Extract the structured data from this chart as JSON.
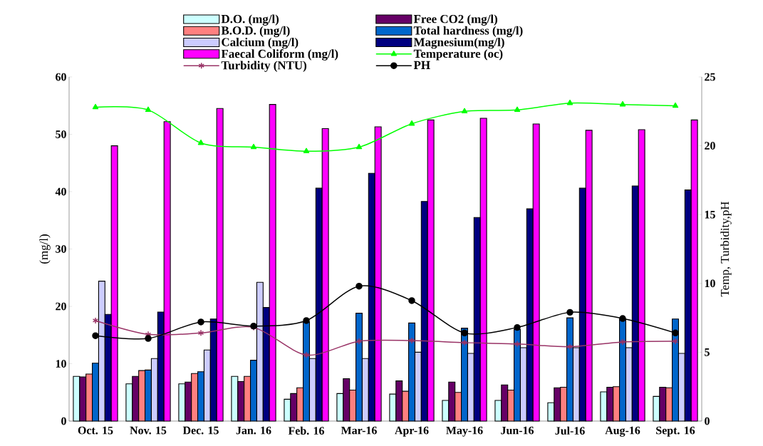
{
  "chart_data": {
    "type": "bar",
    "categories": [
      "Oct. 15",
      "Nov. 15",
      "Dec. 15",
      "Jan. 16",
      "Feb. 16",
      "Mar-16",
      "Apr-16",
      "May-16",
      "Jun-16",
      "Jul-16",
      "Aug-16",
      "Sept. 16"
    ],
    "ylabel": "(mg/l)",
    "y2label": "Temp,  Turbidity,pH",
    "ylim": [
      0,
      60
    ],
    "yticks": [
      0,
      10,
      20,
      30,
      40,
      50,
      60
    ],
    "y2lim": [
      0,
      25
    ],
    "y2ticks": [
      0,
      5,
      10,
      15,
      20,
      25
    ],
    "legend": "top",
    "grid": false,
    "series": [
      {
        "name": "D.O. (mg/l)",
        "color": "#ccffff",
        "values": [
          7.8,
          6.5,
          6.5,
          7.8,
          3.8,
          4.8,
          4.7,
          3.6,
          3.6,
          3.2,
          5.1,
          4.3
        ]
      },
      {
        "name": "Free  CO2 (mg/l)",
        "color": "#660066",
        "values": [
          7.7,
          7.8,
          6.8,
          6.9,
          4.8,
          7.4,
          7.0,
          6.8,
          6.3,
          5.8,
          5.9,
          5.9
        ]
      },
      {
        "name": "B.O.D. (mg/l)",
        "color": "#ff8080",
        "values": [
          8.2,
          8.8,
          8.3,
          7.8,
          5.8,
          5.4,
          5.2,
          5.0,
          5.4,
          5.9,
          6.0,
          5.8
        ]
      },
      {
        "name": "Total hardness (mg/l)",
        "color": "#0066cc",
        "values": [
          10.1,
          8.9,
          8.6,
          10.6,
          17.3,
          18.8,
          17.1,
          16.2,
          16.0,
          18.0,
          17.8,
          17.8
        ]
      },
      {
        "name": "Calcium (mg/l)",
        "color": "#ccccff",
        "values": [
          24.4,
          10.9,
          12.4,
          24.2,
          10.9,
          10.9,
          12.0,
          11.8,
          12.8,
          12.8,
          12.8,
          11.8
        ]
      },
      {
        "name": "Magnesium(mg/l)",
        "color": "#000080",
        "values": [
          18.6,
          19.0,
          17.8,
          19.8,
          40.6,
          43.2,
          38.3,
          35.5,
          37.0,
          40.6,
          41.0,
          40.3
        ]
      },
      {
        "name": "Faecal Coliform (mg/l)",
        "color": "#ff00ff",
        "values": [
          48.0,
          52.2,
          54.5,
          55.2,
          51.0,
          51.3,
          52.5,
          52.8,
          51.8,
          50.7,
          50.8,
          52.5
        ]
      },
      {
        "name": "Temperature (oc)",
        "type": "line",
        "axis": "y2",
        "color": "#00ff00",
        "marker": "triangle",
        "line_style": "solid",
        "values": [
          22.8,
          22.6,
          20.2,
          19.9,
          19.6,
          19.9,
          21.6,
          22.5,
          22.6,
          23.1,
          23.0,
          22.9
        ]
      },
      {
        "name": "Turbidity (NTU)",
        "type": "line",
        "axis": "y2",
        "color": "#993366",
        "marker": "cross",
        "line_style": "solid",
        "values": [
          7.3,
          6.3,
          6.4,
          6.8,
          4.8,
          5.8,
          5.85,
          5.7,
          5.6,
          5.4,
          5.75,
          5.8
        ]
      },
      {
        "name": "PH",
        "type": "line",
        "axis": "y2",
        "color": "#000000",
        "marker": "circle",
        "line_style": "solid",
        "values": [
          6.2,
          6.0,
          7.2,
          6.9,
          7.3,
          9.8,
          8.75,
          6.4,
          6.8,
          7.9,
          7.45,
          6.4
        ]
      }
    ]
  }
}
